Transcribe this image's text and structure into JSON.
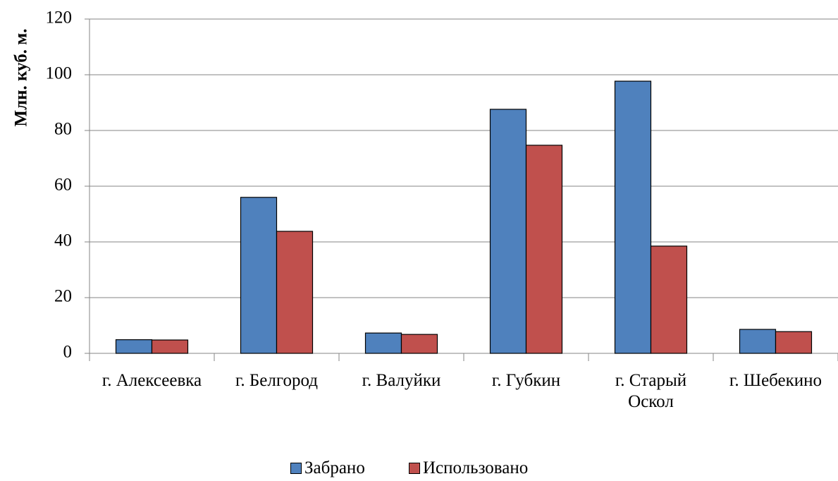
{
  "chart_data": {
    "type": "bar",
    "y_label": "Млн. куб. м.",
    "categories": [
      "г. Алексеевка",
      "г. Белгород",
      "г. Валуйки",
      "г. Губкин",
      "г. Старый Оскол",
      "г. Шебекино"
    ],
    "series": [
      {
        "name": "Забрано",
        "color": "#4f81bd",
        "values": [
          4.9,
          56,
          7.3,
          87.6,
          97.7,
          8.6
        ]
      },
      {
        "name": "Использовано",
        "color": "#c0504d",
        "values": [
          4.8,
          43.8,
          6.8,
          74.7,
          38.5,
          7.8
        ]
      }
    ],
    "ylim": [
      0,
      120
    ],
    "yticks": [
      0,
      20,
      40,
      60,
      80,
      100,
      120
    ],
    "grid": true,
    "legend": "bottom"
  }
}
